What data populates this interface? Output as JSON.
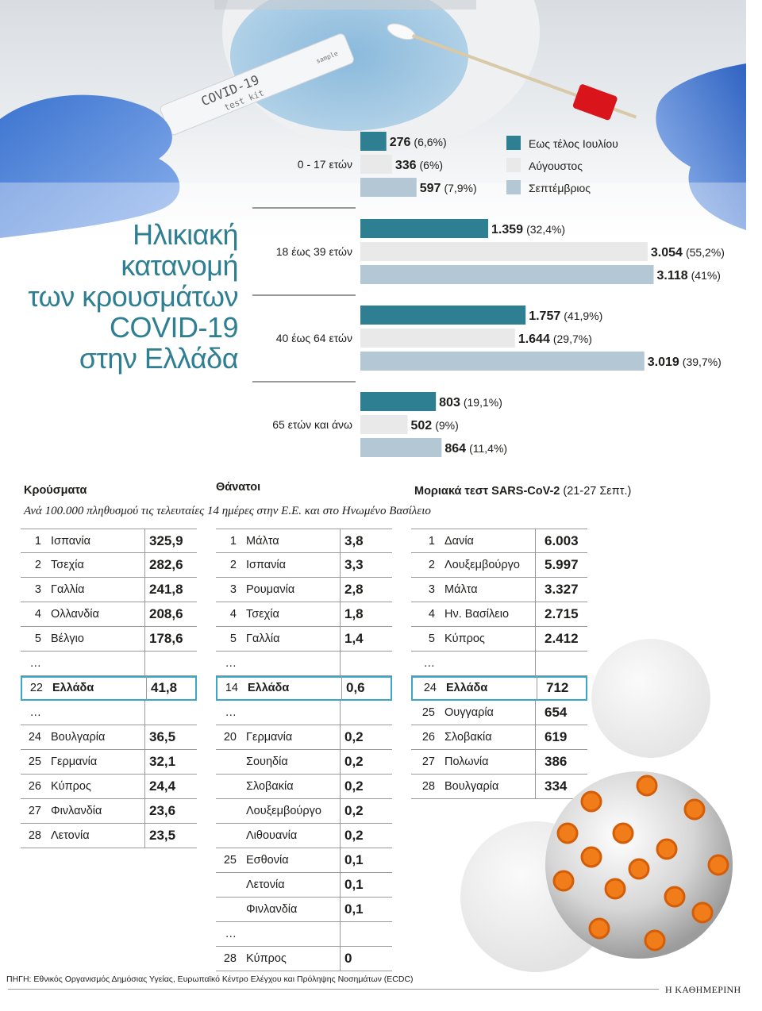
{
  "photo": {
    "kit_label": "COVID-19",
    "kit_sub": "test kit",
    "kit_tag": "sample"
  },
  "title": {
    "lines": [
      "Ηλικιακή",
      "κατανομή",
      "των κρουσμάτων",
      "COVID-19",
      "στην Ελλάδα"
    ]
  },
  "chart_data": {
    "type": "bar",
    "orientation": "horizontal",
    "categories": [
      "0 - 17 ετών",
      "18 έως 39 ετών",
      "40 έως 64 ετών",
      "65 ετών και άνω"
    ],
    "series": [
      {
        "name": "Εως τέλος Ιουλίου",
        "color": "#2e7f92",
        "values": [
          276,
          1359,
          1757,
          803
        ],
        "value_labels": [
          "276",
          "1.359",
          "1.757",
          "803"
        ],
        "pct_labels": [
          "(6,6%)",
          "(32,4%)",
          "(41,9%)",
          "(19,1%)"
        ]
      },
      {
        "name": "Αύγουστος",
        "color": "#e9e9e9",
        "values": [
          336,
          3054,
          1644,
          502
        ],
        "value_labels": [
          "336",
          "3.054",
          "1.644",
          "502"
        ],
        "pct_labels": [
          "(6%)",
          "(55,2%)",
          "(29,7%)",
          "(9%)"
        ]
      },
      {
        "name": "Σεπτέμβριος",
        "color": "#b3c7d5",
        "values": [
          597,
          3118,
          3019,
          864
        ],
        "value_labels": [
          "597",
          "3.118",
          "3.019",
          "864"
        ],
        "pct_labels": [
          "(7,9%)",
          "(41%)",
          "(39,7%)",
          "(11,4%)"
        ]
      }
    ],
    "legend_position": "top-right",
    "grid": false
  },
  "tables": {
    "subtitle": "Ανά 100.000 πληθυσμού τις τελευταίες 14 ημέρες στην Ε.Ε. και στο Ηνωμένο Βασίλειο",
    "cases": {
      "title": "Κρούσματα",
      "rows": [
        {
          "rank": "1",
          "country": "Ισπανία",
          "value": "325,9"
        },
        {
          "rank": "2",
          "country": "Τσεχία",
          "value": "282,6"
        },
        {
          "rank": "3",
          "country": "Γαλλία",
          "value": "241,8"
        },
        {
          "rank": "4",
          "country": "Ολλανδία",
          "value": "208,6"
        },
        {
          "rank": "5",
          "country": "Βέλγιο",
          "value": "178,6"
        },
        {
          "rank": "…",
          "country": "",
          "value": ""
        },
        {
          "rank": "22",
          "country": "Ελλάδα",
          "value": "41,8",
          "highlight": true
        },
        {
          "rank": "…",
          "country": "",
          "value": ""
        },
        {
          "rank": "24",
          "country": "Βουλγαρία",
          "value": "36,5"
        },
        {
          "rank": "25",
          "country": "Γερμανία",
          "value": "32,1"
        },
        {
          "rank": "26",
          "country": "Κύπρος",
          "value": "24,4"
        },
        {
          "rank": "27",
          "country": "Φινλανδία",
          "value": "23,6"
        },
        {
          "rank": "28",
          "country": "Λετονία",
          "value": "23,5"
        }
      ]
    },
    "deaths": {
      "title": "Θάνατοι",
      "rows": [
        {
          "rank": "1",
          "country": "Μάλτα",
          "value": "3,8"
        },
        {
          "rank": "2",
          "country": "Ισπανία",
          "value": "3,3"
        },
        {
          "rank": "3",
          "country": "Ρουμανία",
          "value": "2,8"
        },
        {
          "rank": "4",
          "country": "Τσεχία",
          "value": "1,8"
        },
        {
          "rank": "5",
          "country": "Γαλλία",
          "value": "1,4"
        },
        {
          "rank": "…",
          "country": "",
          "value": ""
        },
        {
          "rank": "14",
          "country": "Ελλάδα",
          "value": "0,6",
          "highlight": true
        },
        {
          "rank": "…",
          "country": "",
          "value": ""
        },
        {
          "rank": "20",
          "country": "Γερμανία",
          "value": "0,2"
        },
        {
          "rank": "",
          "country": "Σουηδία",
          "value": "0,2"
        },
        {
          "rank": "",
          "country": "Σλοβακία",
          "value": "0,2"
        },
        {
          "rank": "",
          "country": "Λουξεμβούργο",
          "value": "0,2"
        },
        {
          "rank": "",
          "country": "Λιθουανία",
          "value": "0,2"
        },
        {
          "rank": "25",
          "country": "Εσθονία",
          "value": "0,1"
        },
        {
          "rank": "",
          "country": "Λετονία",
          "value": "0,1"
        },
        {
          "rank": "",
          "country": "Φινλανδία",
          "value": "0,1"
        },
        {
          "rank": "…",
          "country": "",
          "value": ""
        },
        {
          "rank": "28",
          "country": "Κύπρος",
          "value": "0"
        }
      ]
    },
    "tests": {
      "title": "Μοριακά τεστ SARS-CoV-2",
      "title_sub": "(21-27 Σεπτ.)",
      "rows": [
        {
          "rank": "1",
          "country": "Δανία",
          "value": "6.003"
        },
        {
          "rank": "2",
          "country": "Λουξεμβούργο",
          "value": "5.997"
        },
        {
          "rank": "3",
          "country": "Μάλτα",
          "value": "3.327"
        },
        {
          "rank": "4",
          "country": "Ην. Βασίλειο",
          "value": "2.715"
        },
        {
          "rank": "5",
          "country": "Κύπρος",
          "value": "2.412"
        },
        {
          "rank": "…",
          "country": "",
          "value": ""
        },
        {
          "rank": "24",
          "country": "Ελλάδα",
          "value": "712",
          "highlight": true
        },
        {
          "rank": "25",
          "country": "Ουγγαρία",
          "value": "654"
        },
        {
          "rank": "26",
          "country": "Σλοβακία",
          "value": "619"
        },
        {
          "rank": "27",
          "country": "Πολωνία",
          "value": "386"
        },
        {
          "rank": "28",
          "country": "Βουλγαρία",
          "value": "334"
        }
      ]
    }
  },
  "footer": {
    "source": "ΠΗΓΗ: Εθνικός Οργανισμός Δημόσιας Υγείας, Ευρωπαϊκό Κέντρο Ελέγχου και Πρόληψης Νοσημάτων (ECDC)",
    "brand": "Η ΚΑΘΗΜΕΡΙΝΗ"
  },
  "colors": {
    "title": "#2e7f92",
    "highlight_border": "#3aa7c9"
  },
  "icons": [
    "covid-test-kit-icon",
    "virus-icon"
  ]
}
